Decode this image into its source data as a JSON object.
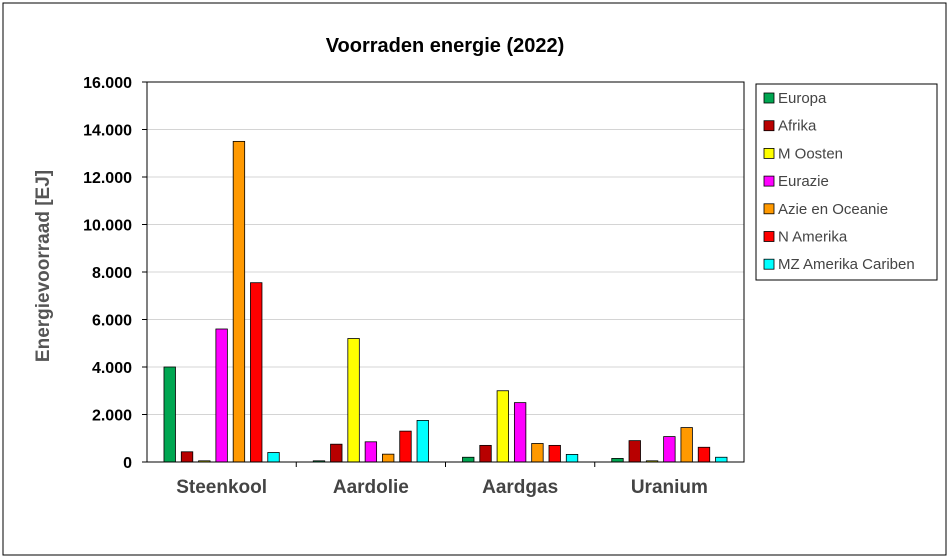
{
  "chart_data": {
    "type": "bar",
    "title": "Voorraden energie (2022)",
    "xlabel": "",
    "ylabel": "Energievoorraad [EJ]",
    "ylim": [
      0,
      16000
    ],
    "yticks": [
      0,
      2000,
      4000,
      6000,
      8000,
      10000,
      12000,
      14000,
      16000
    ],
    "ytick_labels": [
      "0",
      "2.000",
      "4.000",
      "6.000",
      "8.000",
      "10.000",
      "12.000",
      "14.000",
      "16.000"
    ],
    "grid": true,
    "legend_position": "right",
    "categories": [
      "Steenkool",
      "Aardolie",
      "Aardgas",
      "Uranium"
    ],
    "series": [
      {
        "name": "Europa",
        "color": "#00a651",
        "values": [
          4000,
          50,
          200,
          150
        ]
      },
      {
        "name": "Afrika",
        "color": "#b80000",
        "values": [
          430,
          750,
          700,
          900
        ]
      },
      {
        "name": "M Oosten",
        "color": "#ffff00",
        "values": [
          50,
          5200,
          3000,
          50
        ]
      },
      {
        "name": "Eurazie",
        "color": "#ff00ff",
        "values": [
          5600,
          850,
          2500,
          1070
        ]
      },
      {
        "name": "Azie en Oceanie",
        "color": "#ff9900",
        "values": [
          13500,
          330,
          780,
          1450
        ]
      },
      {
        "name": "N Amerika",
        "color": "#ff0000",
        "values": [
          7550,
          1300,
          700,
          620
        ]
      },
      {
        "name": "MZ Amerika Cariben",
        "color": "#00ffff",
        "values": [
          400,
          1750,
          320,
          200
        ]
      }
    ]
  }
}
